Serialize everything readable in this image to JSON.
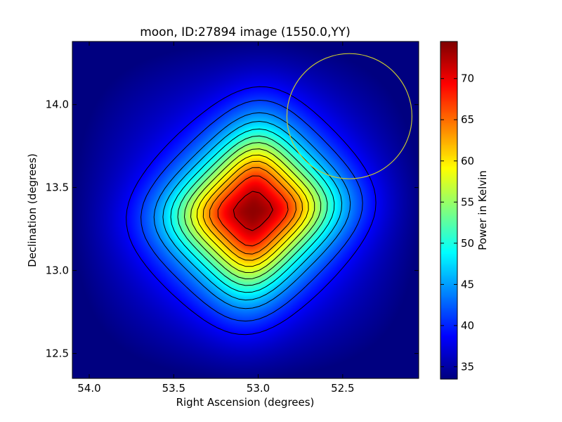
{
  "chart_data": {
    "type": "heatmap",
    "title": "moon, ID:27894 image (1550.0,YY)",
    "xlabel": "Right Ascension (degrees)",
    "ylabel": "Declination (degrees)",
    "xlim": [
      54.1,
      52.05
    ],
    "ylim": [
      12.35,
      14.38
    ],
    "x_inverted": true,
    "xticks": [
      54.0,
      53.5,
      53.0,
      52.5
    ],
    "xtick_labels": [
      "54.0",
      "53.5",
      "53.0",
      "52.5"
    ],
    "yticks": [
      12.5,
      13.0,
      13.5,
      14.0
    ],
    "ytick_labels": [
      "12.5",
      "13.0",
      "13.5",
      "14.0"
    ],
    "colorbar": {
      "label": "Power in Kelvin",
      "colormap": "jet",
      "range": [
        33.5,
        74.5
      ],
      "ticks": [
        35,
        40,
        45,
        50,
        55,
        60,
        65,
        70
      ],
      "tick_labels": [
        "35",
        "40",
        "45",
        "50",
        "55",
        "60",
        "65",
        "70"
      ]
    },
    "source_peak": {
      "ra": 53.03,
      "dec": 13.36,
      "value": 73.5
    },
    "background_level": 37.5,
    "contour_levels": [
      38.5,
      41,
      44,
      46.5,
      49,
      51.5,
      54,
      56.5,
      59,
      61.5,
      64,
      67,
      71.5
    ],
    "marker_circle": {
      "ra": 52.46,
      "dec": 13.93,
      "radius_deg": 0.37,
      "color": "#c8c832"
    },
    "grid": false,
    "legend": "none"
  }
}
